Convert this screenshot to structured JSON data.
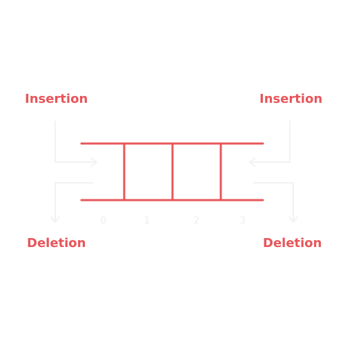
{
  "labels": {
    "top_left": "Insertion",
    "top_right": "Insertion",
    "bottom_left": "Deletion",
    "bottom_right": "Deletion"
  },
  "indices": [
    "0",
    "1",
    "2",
    "3"
  ],
  "colors": {
    "accent": "#e8555a",
    "faint": "#f2f2f2",
    "faint_text": "#eeeeee",
    "background": "#ffffff"
  }
}
